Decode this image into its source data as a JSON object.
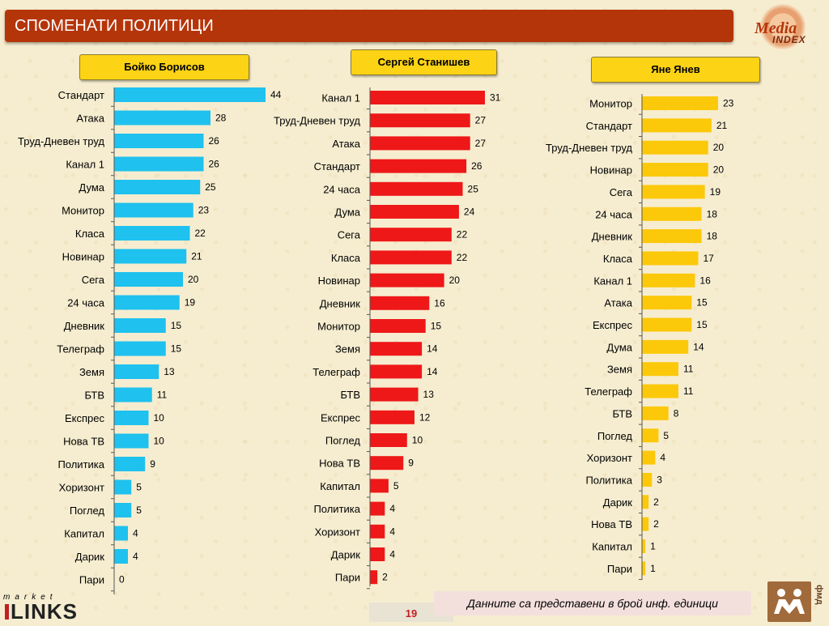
{
  "header": {
    "title": "СПОМЕНАТИ ПОЛИТИЦИ"
  },
  "logos": {
    "media_index_top": "Media",
    "media_index_bottom": "INDEX",
    "market": "market",
    "links": "LINKS",
    "fmd": "фмд"
  },
  "footer": {
    "note": "Данните са представени в брой инф. единици",
    "page_number": "19"
  },
  "colors": {
    "borisov": "#1fc1ee",
    "stanishev": "#ee1818",
    "yanev": "#fcc80a",
    "title_bar": "#b5350a",
    "name_box": "#fcd315"
  },
  "chart_data": [
    {
      "type": "bar",
      "orientation": "horizontal",
      "title": "Бойко Борисов",
      "categories": [
        "Стандарт",
        "Атака",
        "Труд-Дневен труд",
        "Канал 1",
        "Дума",
        "Монитор",
        "Класа",
        "Новинар",
        "Сега",
        "24 часа",
        "Дневник",
        "Телеграф",
        "Земя",
        "БТВ",
        "Експрес",
        "Нова ТВ",
        "Политика",
        "Хоризонт",
        "Поглед",
        "Капитал",
        "Дарик",
        "Пари"
      ],
      "values": [
        44,
        28,
        26,
        26,
        25,
        23,
        22,
        21,
        20,
        19,
        15,
        15,
        13,
        11,
        10,
        10,
        9,
        5,
        5,
        4,
        4,
        0
      ],
      "xlim": [
        0,
        44
      ],
      "grid": false,
      "legend": "none"
    },
    {
      "type": "bar",
      "orientation": "horizontal",
      "title": "Сергей Станишев",
      "categories": [
        "Канал 1",
        "Труд-Дневен труд",
        "Атака",
        "Стандарт",
        "24 часа",
        "Дума",
        "Сега",
        "Класа",
        "Новинар",
        "Дневник",
        "Монитор",
        "Земя",
        "Телеграф",
        "БТВ",
        "Експрес",
        "Поглед",
        "Нова ТВ",
        "Капитал",
        "Политика",
        "Хоризонт",
        "Дарик",
        "Пари"
      ],
      "values": [
        31,
        27,
        27,
        26,
        25,
        24,
        22,
        22,
        20,
        16,
        15,
        14,
        14,
        13,
        12,
        10,
        9,
        5,
        4,
        4,
        4,
        2
      ],
      "xlim": [
        0,
        31
      ],
      "grid": false,
      "legend": "none"
    },
    {
      "type": "bar",
      "orientation": "horizontal",
      "title": "Яне Янев",
      "categories": [
        "Монитор",
        "Стандарт",
        "Труд-Дневен труд",
        "Новинар",
        "Сега",
        "24 часа",
        "Дневник",
        "Класа",
        "Канал 1",
        "Атака",
        "Експрес",
        "Дума",
        "Земя",
        "Телеграф",
        "БТВ",
        "Поглед",
        "Хоризонт",
        "Политика",
        "Дарик",
        "Нова ТВ",
        "Капитал",
        "Пари"
      ],
      "values": [
        23,
        21,
        20,
        20,
        19,
        18,
        18,
        17,
        16,
        15,
        15,
        14,
        11,
        11,
        8,
        5,
        4,
        3,
        2,
        2,
        1,
        1
      ],
      "xlim": [
        0,
        23
      ],
      "grid": false,
      "legend": "none"
    }
  ]
}
